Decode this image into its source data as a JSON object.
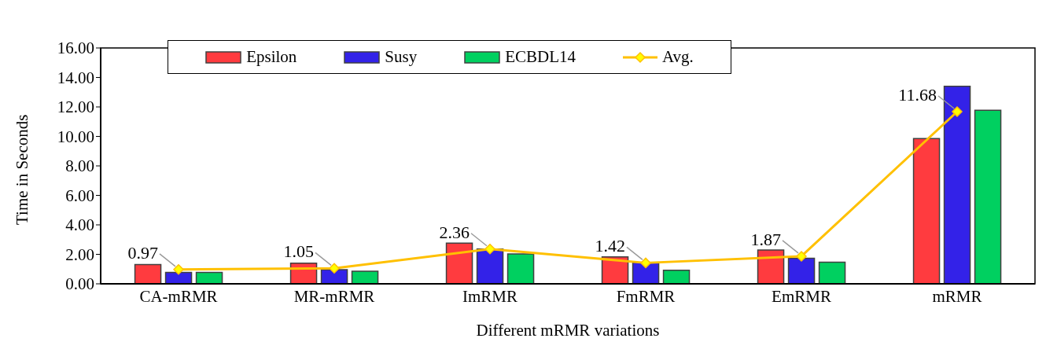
{
  "chart_data": {
    "type": "bar",
    "xlabel": "Different mRMR variations",
    "ylabel": "Time in Seconds",
    "categories": [
      "CA-mRMR",
      "MR-mRMR",
      "ImRMR",
      "FmRMR",
      "EmRMR",
      "mRMR"
    ],
    "series": [
      {
        "name": "Epsilon",
        "color": "#ff3b3f",
        "values": [
          1.31,
          1.4,
          2.76,
          1.83,
          2.29,
          9.85
        ]
      },
      {
        "name": "Susy",
        "color": "#3322e8",
        "values": [
          0.77,
          0.96,
          2.36,
          1.45,
          1.74,
          13.4
        ]
      },
      {
        "name": "ECBDL14",
        "color": "#00d060",
        "values": [
          0.77,
          0.85,
          2.03,
          0.92,
          1.47,
          11.78
        ]
      },
      {
        "name": "Avg.",
        "type": "line",
        "color": "#ffc000",
        "values": [
          0.97,
          1.05,
          2.36,
          1.42,
          1.87,
          11.68
        ],
        "value_labels": [
          "0.97",
          "1.05",
          "2.36",
          "1.42",
          "1.87",
          "11.68"
        ]
      }
    ],
    "ylim": [
      0,
      16
    ],
    "yticks": [
      {
        "value": 0,
        "label": "0.00"
      },
      {
        "value": 2,
        "label": "2.00"
      },
      {
        "value": 4,
        "label": "4.00"
      },
      {
        "value": 6,
        "label": "6.00"
      },
      {
        "value": 8,
        "label": "8.00"
      },
      {
        "value": 10,
        "label": "10.00"
      },
      {
        "value": 12,
        "label": "12.00"
      },
      {
        "value": 14,
        "label": "14.00"
      },
      {
        "value": 16,
        "label": "16.00"
      }
    ],
    "grid": false,
    "legend": "top",
    "marker": "diamond",
    "line_style": "solid"
  }
}
